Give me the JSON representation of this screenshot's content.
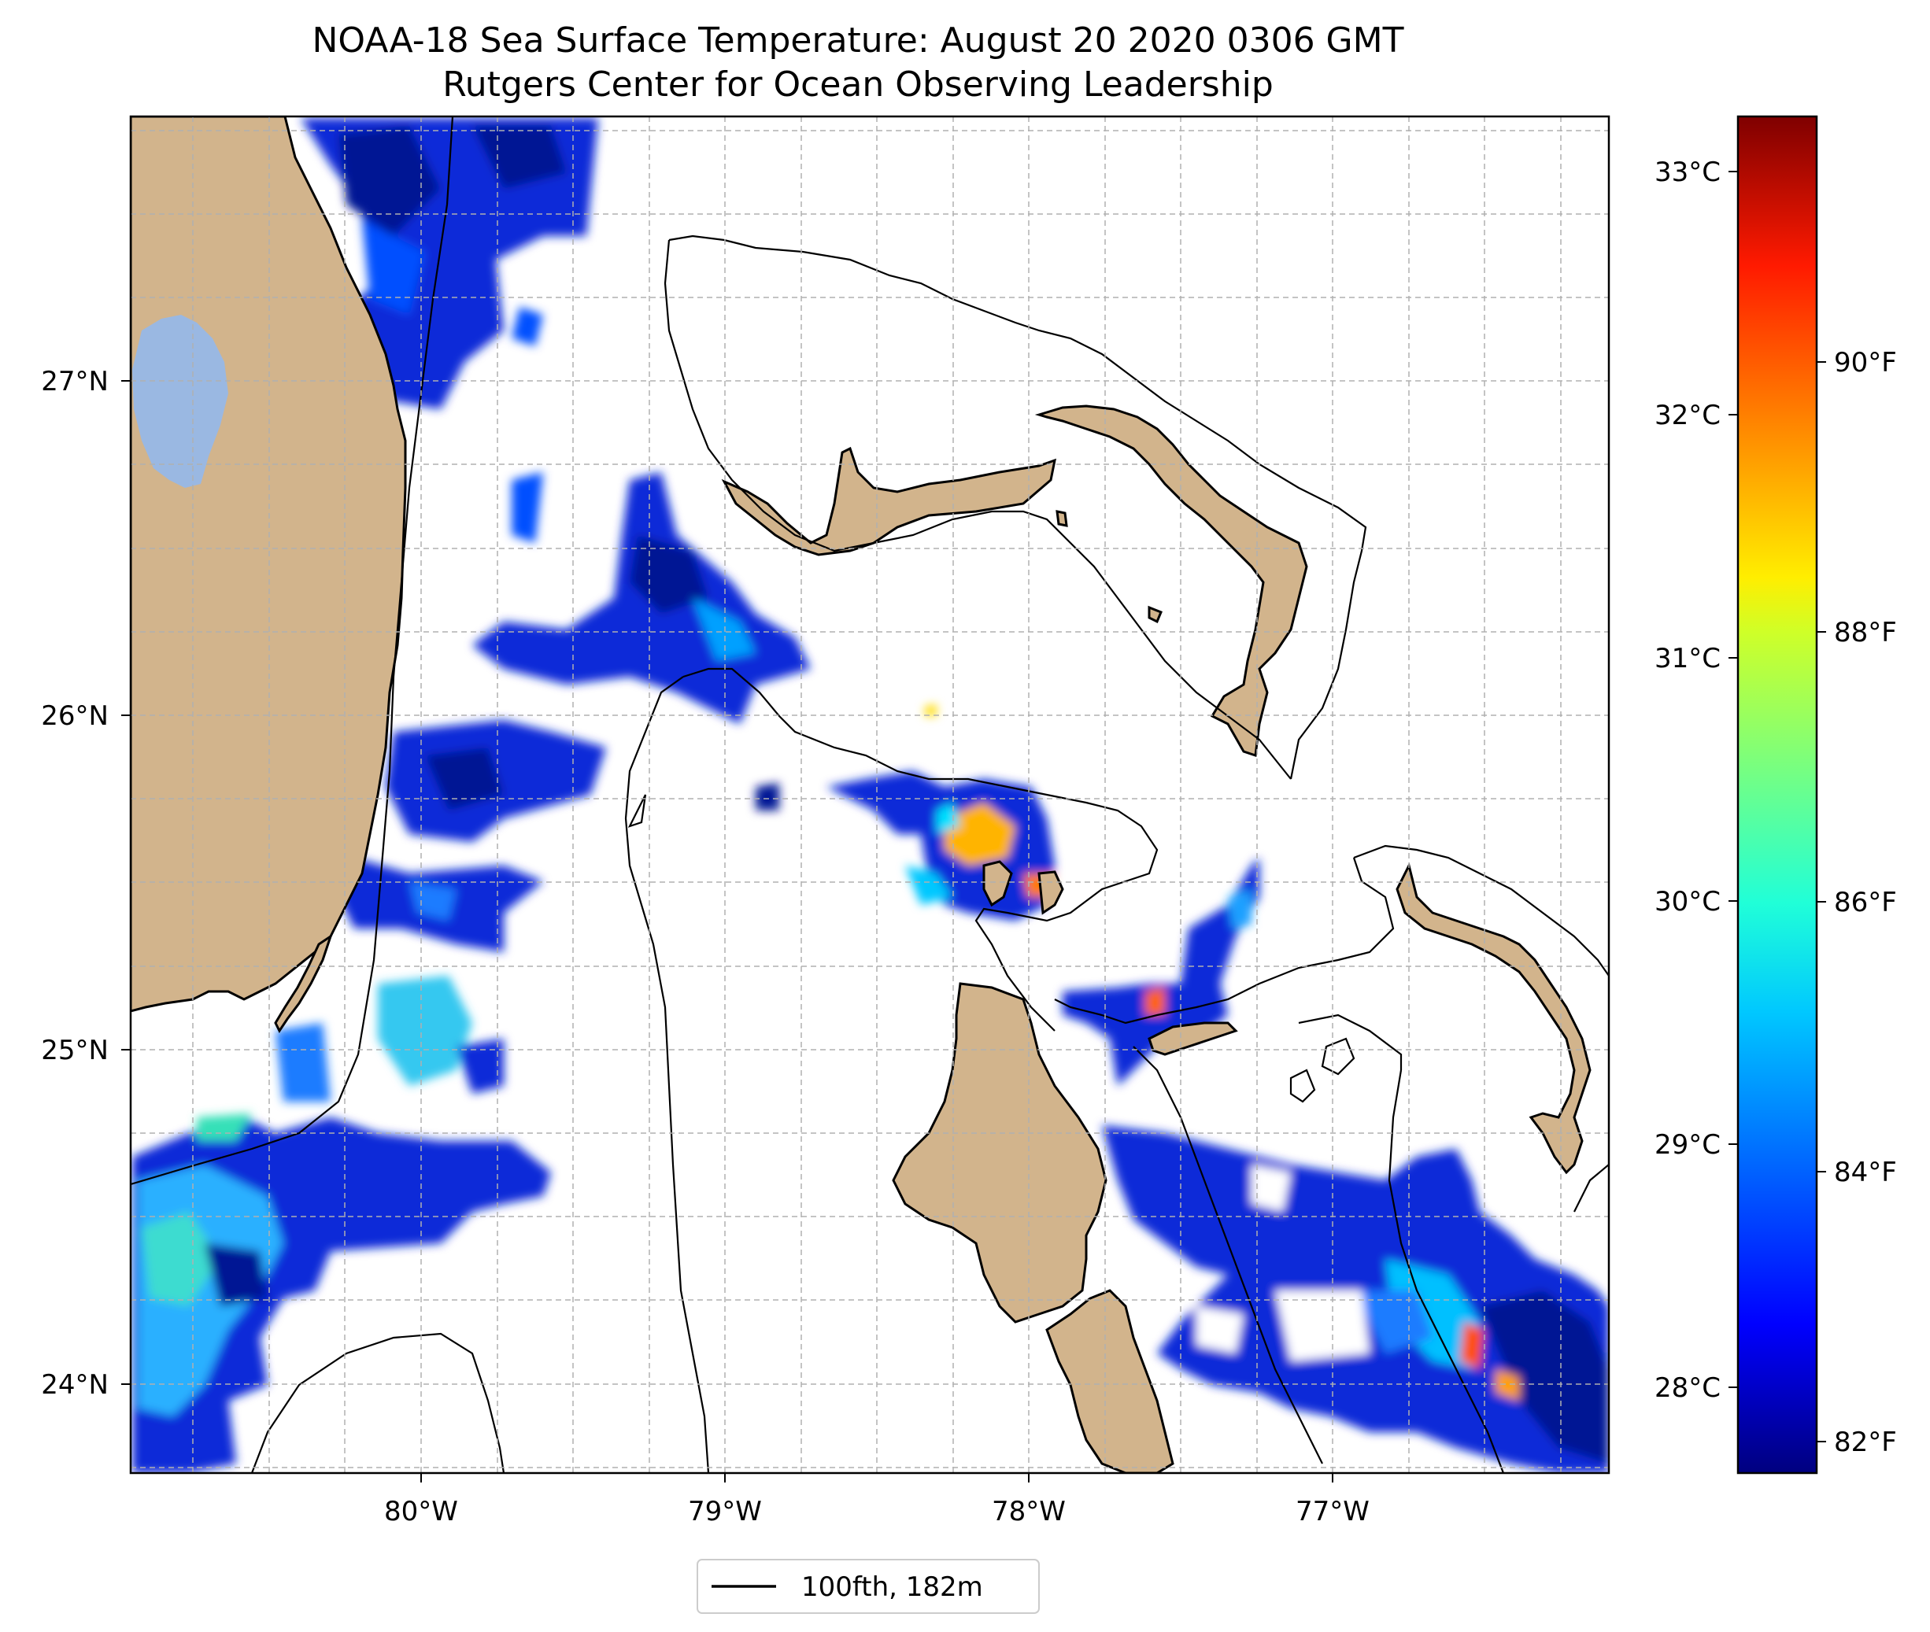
{
  "title": {
    "line1": "NOAA-18 Sea Surface Temperature: August 20 2020 0306 GMT",
    "line2": "Rutgers Center for Ocean Observing Leadership"
  },
  "axes": {
    "x_ticks": [
      "80°W",
      "79°W",
      "78°W",
      "77°W"
    ],
    "y_ticks": [
      "27°N",
      "26°N",
      "25°N",
      "24°N"
    ],
    "x_range_lon": [
      -80.95,
      -76.1
    ],
    "y_range_lat": [
      23.75,
      27.8
    ],
    "grid": true
  },
  "colorbar": {
    "colormap": "jet",
    "celsius_ticks": [
      "33°C",
      "32°C",
      "31°C",
      "30°C",
      "29°C",
      "28°C"
    ],
    "fahrenheit_ticks": [
      "90°F",
      "88°F",
      "86°F",
      "84°F",
      "82°F"
    ],
    "range_c": [
      27.7,
      33.3
    ]
  },
  "legend": {
    "label": "100fth, 182m"
  },
  "colors": {
    "land": "#d2b48c",
    "lake": "#9ab8e2",
    "contour": "#000000",
    "grid": "#b0b0b0"
  }
}
